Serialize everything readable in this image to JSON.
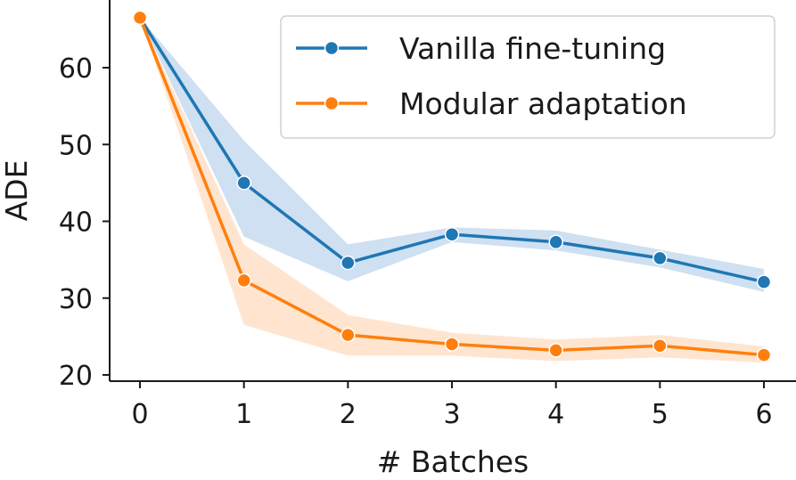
{
  "chart_data": {
    "type": "line",
    "title": "",
    "xlabel": "# Batches",
    "ylabel": "ADE",
    "x": [
      0,
      1,
      2,
      3,
      4,
      5,
      6
    ],
    "xticks": [
      "0",
      "1",
      "2",
      "3",
      "4",
      "5",
      "6"
    ],
    "yticks": [
      "20",
      "30",
      "40",
      "50",
      "60"
    ],
    "xlim": [
      -0.3,
      6.3
    ],
    "ylim": [
      19,
      68
    ],
    "grid": false,
    "legend_position": "top-right",
    "series": [
      {
        "name": "Vanilla fine-tuning",
        "color": "#1f77b4",
        "band_color": "#aecbe8",
        "values": [
          66.5,
          45.0,
          34.6,
          38.3,
          37.3,
          35.2,
          32.1
        ],
        "lower": [
          66.5,
          38.0,
          32.2,
          37.3,
          36.2,
          34.0,
          30.8
        ],
        "upper": [
          66.5,
          50.5,
          37.0,
          39.2,
          38.8,
          36.3,
          33.8
        ]
      },
      {
        "name": "Modular adaptation",
        "color": "#ff7f0e",
        "band_color": "#ffd3b0",
        "values": [
          66.5,
          32.3,
          25.2,
          24.0,
          23.2,
          23.8,
          22.6
        ],
        "lower": [
          66.5,
          26.5,
          22.5,
          22.5,
          21.8,
          22.3,
          21.6
        ],
        "upper": [
          66.5,
          37.0,
          27.8,
          25.5,
          24.6,
          25.2,
          23.7
        ]
      }
    ]
  }
}
